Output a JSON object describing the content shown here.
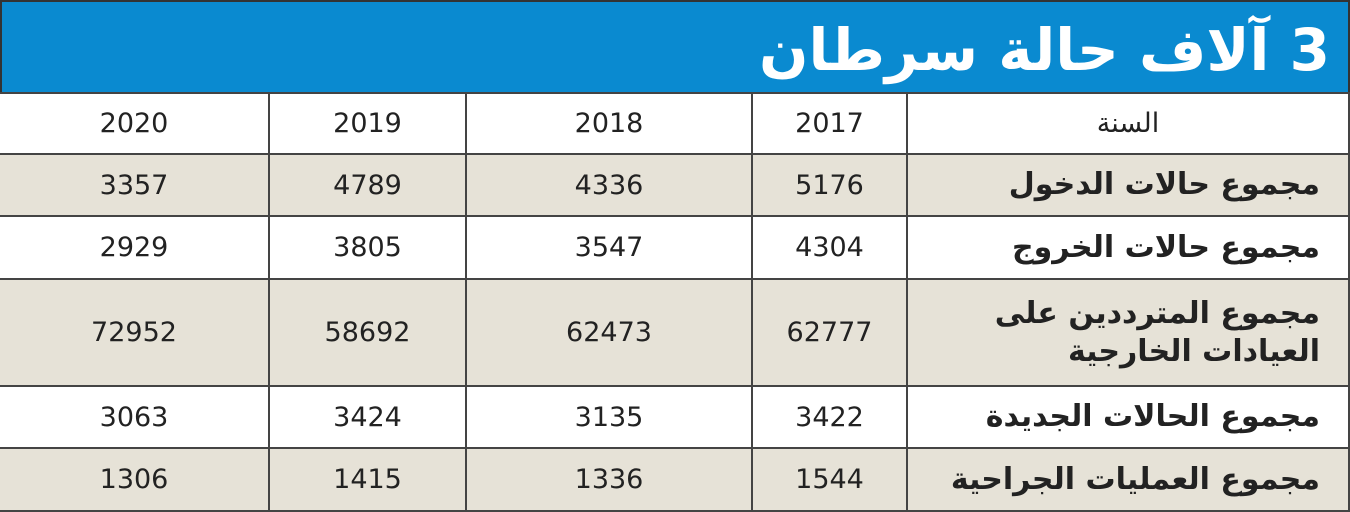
{
  "header": {
    "title": "3 آلاف حالة سرطان"
  },
  "table": {
    "columns": [
      "السنة",
      "2017",
      "2018",
      "2019",
      "2020"
    ],
    "rows": [
      [
        "مجموع حالات الدخول",
        5176,
        4336,
        4789,
        3357
      ],
      [
        "مجموع حالات الخروج",
        4304,
        3547,
        3805,
        2929
      ],
      [
        "مجموع المترددين على العيادات الخارجية",
        62777,
        62473,
        58692,
        72952
      ],
      [
        "مجموع الحالات الجديدة",
        3422,
        3135,
        3424,
        3063
      ],
      [
        "مجموع العمليات الجراحية",
        1544,
        1336,
        1415,
        1306
      ]
    ]
  }
}
